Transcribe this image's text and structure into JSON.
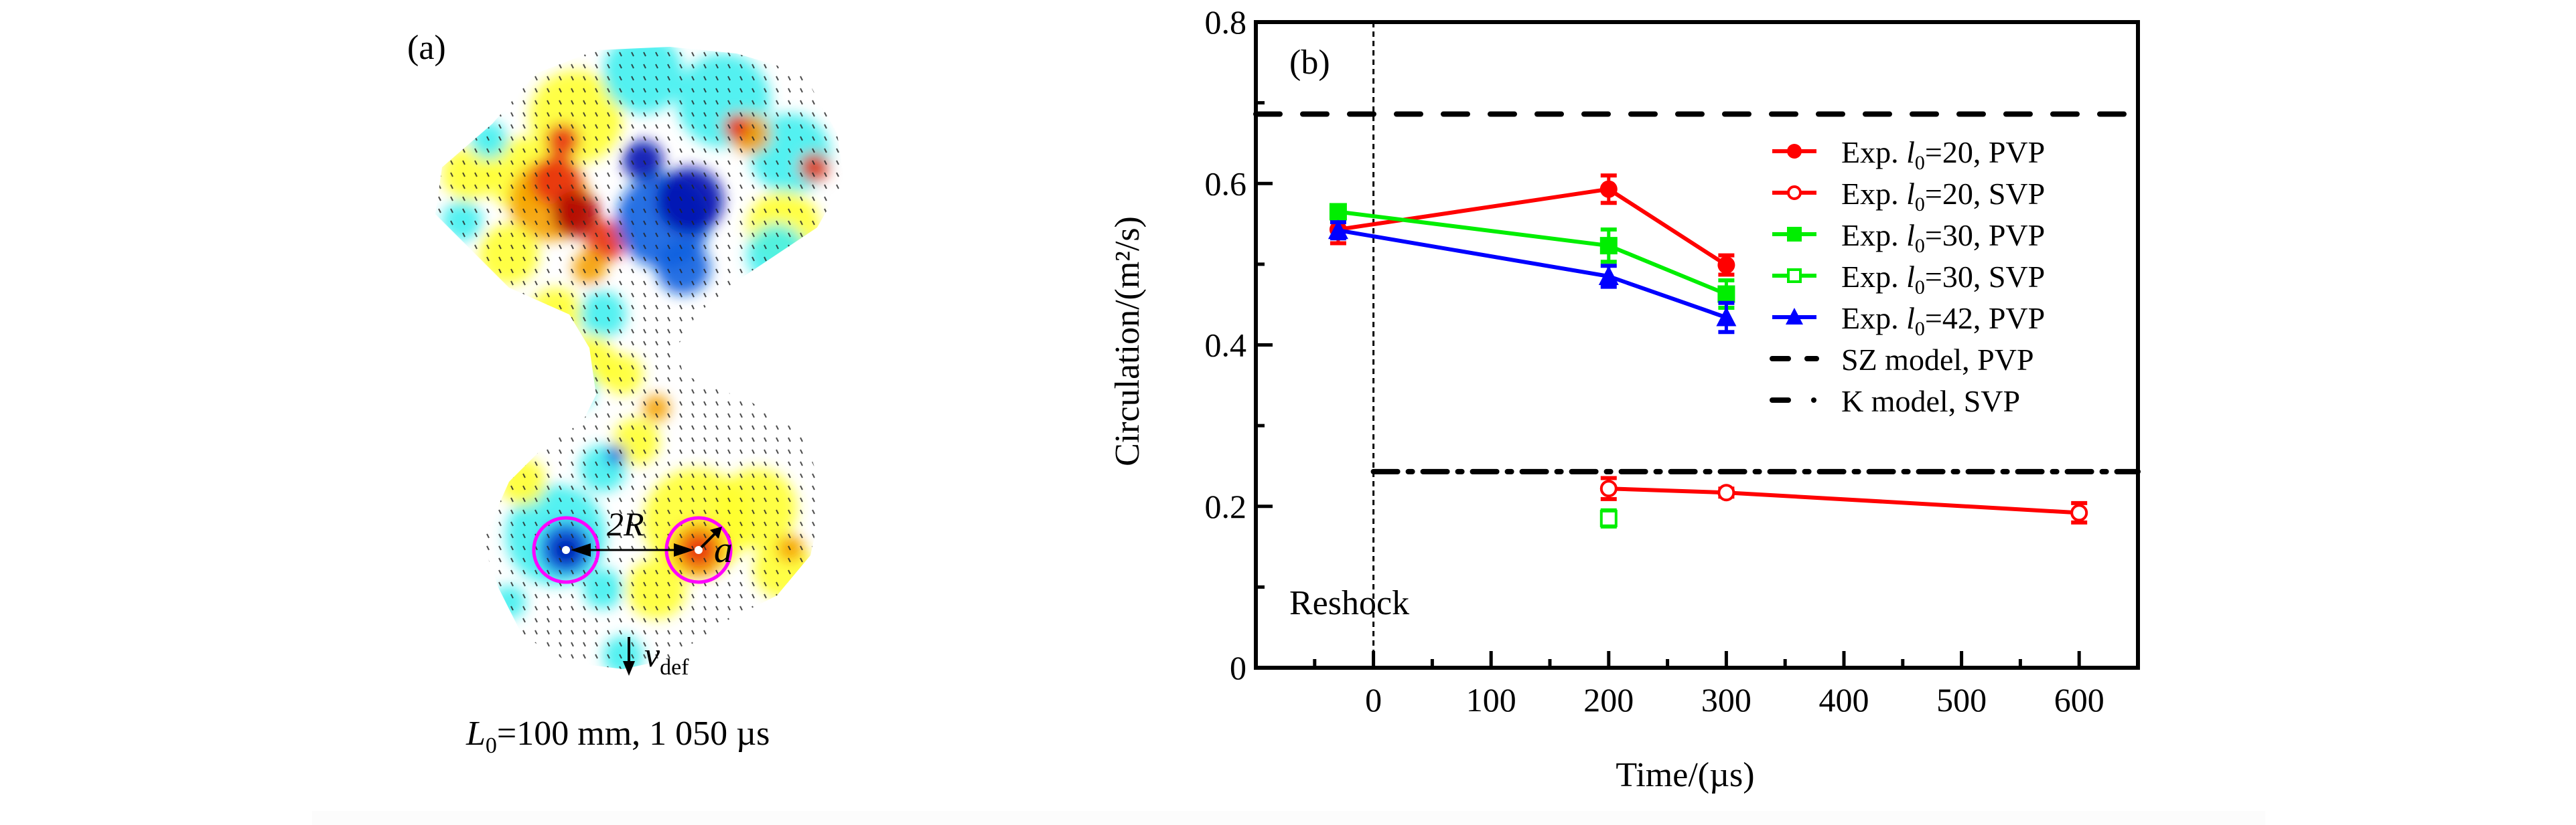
{
  "panel_a": {
    "label": "(a)",
    "caption_prefix": "L",
    "caption_sub": "0",
    "caption_rest": "=100 mm, 1 050 µs",
    "annotation_2R": "2R",
    "annotation_a": "a",
    "annotation_v": "v",
    "annotation_v_sub": "def",
    "colormap": {
      "dark_red": "#b00000",
      "red": "#e83010",
      "orange": "#f5a000",
      "yellow": "#ffff30",
      "cyan": "#40f0f0",
      "blue": "#1060e0",
      "dark_blue": "#0010b0"
    },
    "circle_color": "#ff00ff"
  },
  "chart_data": {
    "type": "line",
    "panel_label": "(b)",
    "title": "",
    "xlabel": "Time/(µs)",
    "ylabel": "Circulation/(m²/s)",
    "xlim": [
      -100,
      650
    ],
    "ylim": [
      0,
      0.8
    ],
    "xticks": [
      0,
      100,
      200,
      300,
      400,
      500,
      600
    ],
    "xtick_labels": [
      "0",
      "100",
      "200",
      "300",
      "400",
      "500",
      "600"
    ],
    "xminor": [
      -50,
      50,
      150,
      250,
      350,
      450,
      550
    ],
    "yticks": [
      0,
      0.2,
      0.4,
      0.6,
      0.8
    ],
    "ytick_labels": [
      "0",
      "0.2",
      "0.4",
      "0.6",
      "0.8"
    ],
    "yminor": [
      0.1,
      0.3,
      0.5,
      0.7
    ],
    "grid": false,
    "legend_position": "top-right",
    "annotation": {
      "text": "Reshock",
      "x": 0
    },
    "series": [
      {
        "name": "Exp. l0=20, PVP",
        "label_pre": "Exp. ",
        "label_var": "l",
        "label_sub": "0",
        "label_post": "=20, PVP",
        "color": "#ff0000",
        "marker": "filled-circle",
        "x": [
          -30,
          200,
          300
        ],
        "y": [
          0.543,
          0.593,
          0.499
        ],
        "err": [
          0.017,
          0.017,
          0.012
        ]
      },
      {
        "name": "Exp. l0=20, SVP",
        "label_pre": "Exp. ",
        "label_var": "l",
        "label_sub": "0",
        "label_post": "=20, SVP",
        "color": "#ff0000",
        "marker": "open-circle",
        "x": [
          200,
          300,
          600
        ],
        "y": [
          0.222,
          0.217,
          0.192
        ],
        "err": [
          0.013,
          0.005,
          0.012
        ]
      },
      {
        "name": "Exp. l0=30, PVP",
        "label_pre": "Exp. ",
        "label_var": "l",
        "label_sub": "0",
        "label_post": "=30, PVP",
        "color": "#00ee00",
        "marker": "filled-square",
        "x": [
          -30,
          200,
          300
        ],
        "y": [
          0.565,
          0.523,
          0.463
        ],
        "err": [
          0.008,
          0.02,
          0.017
        ]
      },
      {
        "name": "Exp. l0=30, SVP",
        "label_pre": "Exp. ",
        "label_var": "l",
        "label_sub": "0",
        "label_post": "=30, SVP",
        "color": "#00ee00",
        "marker": "open-square",
        "x": [
          200
        ],
        "y": [
          0.185
        ],
        "err": [
          0.01
        ]
      },
      {
        "name": "Exp. l0=42, PVP",
        "label_pre": "Exp. ",
        "label_var": "l",
        "label_sub": "0",
        "label_post": "=42, PVP",
        "color": "#0000ff",
        "marker": "filled-triangle",
        "x": [
          -30,
          200,
          300
        ],
        "y": [
          0.542,
          0.485,
          0.434
        ],
        "err": [
          0.01,
          0.013,
          0.018
        ]
      }
    ],
    "reference_lines": [
      {
        "name": "SZ model, PVP",
        "label": "SZ model, PVP",
        "y": 0.686,
        "x_from": -100,
        "style": "dash",
        "color": "#000000"
      },
      {
        "name": "K model, SVP",
        "label": "K model, SVP",
        "y": 0.243,
        "x_from": 0,
        "style": "dash-dot",
        "color": "#000000"
      }
    ],
    "reshock_line": {
      "x": 0,
      "style": "dotted"
    }
  }
}
